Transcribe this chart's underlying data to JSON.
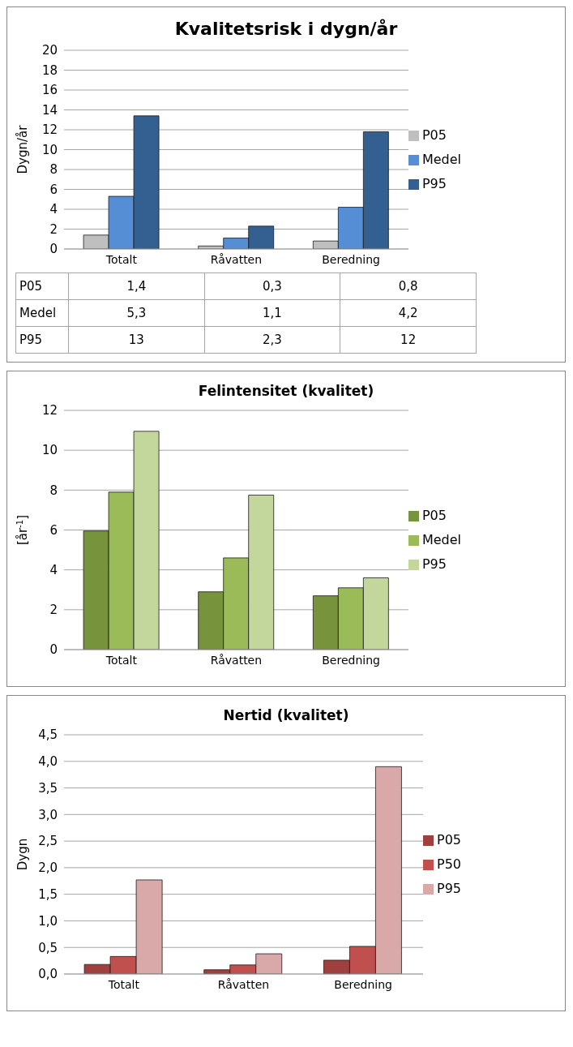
{
  "chart_data": [
    {
      "type": "bar",
      "title": "Kvalitetsrisk i dygn/år",
      "ylabel": "Dygn/år",
      "categories": [
        "Totalt",
        "Råvatten",
        "Beredning"
      ],
      "series": [
        {
          "name": "P05",
          "color": "#bfbfbf",
          "values": [
            1.4,
            0.3,
            0.8
          ],
          "value_labels": [
            "1,4",
            "0,3",
            "0,8"
          ]
        },
        {
          "name": "Medel",
          "color": "#558ed5",
          "values": [
            5.3,
            1.1,
            4.2
          ],
          "value_labels": [
            "5,3",
            "1,1",
            "4,2"
          ]
        },
        {
          "name": "P95",
          "color": "#335f91",
          "values": [
            13.4,
            2.3,
            11.8
          ],
          "value_labels": [
            "13",
            "2,3",
            "12"
          ]
        }
      ],
      "ylim": [
        0,
        20
      ],
      "yticks": [
        0,
        2,
        4,
        6,
        8,
        10,
        12,
        14,
        16,
        18,
        20
      ],
      "grid": "y",
      "legend": "right"
    },
    {
      "type": "bar",
      "title": "Felintensitet (kvalitet)",
      "ylabel": "[år$^{-1}$]",
      "categories": [
        "Totalt",
        "Råvatten",
        "Beredning"
      ],
      "series": [
        {
          "name": "P05",
          "color": "#77933c",
          "values": [
            5.95,
            2.9,
            2.7
          ]
        },
        {
          "name": "Medel",
          "color": "#9bbb59",
          "values": [
            7.9,
            4.6,
            3.1
          ]
        },
        {
          "name": "P95",
          "color": "#c3d69b",
          "values": [
            10.95,
            7.75,
            3.6
          ]
        }
      ],
      "ylim": [
        0,
        12
      ],
      "yticks": [
        0,
        2,
        4,
        6,
        8,
        10,
        12
      ],
      "grid": "y",
      "legend": "right"
    },
    {
      "type": "bar",
      "title": "Nertid (kvalitet)",
      "ylabel": "Dygn",
      "categories": [
        "Totalt",
        "Råvatten",
        "Beredning"
      ],
      "series": [
        {
          "name": "P05",
          "color": "#a0403e",
          "values": [
            0.18,
            0.08,
            0.26
          ]
        },
        {
          "name": "P50",
          "color": "#c0504d",
          "values": [
            0.33,
            0.17,
            0.52
          ]
        },
        {
          "name": "P95",
          "color": "#d9a9a9",
          "values": [
            1.77,
            0.38,
            3.9
          ]
        }
      ],
      "ylim": [
        0,
        4.5
      ],
      "yticks": [
        {
          "value": 0,
          "label": "0,0"
        },
        {
          "value": 0.5,
          "label": "0,5"
        },
        {
          "value": 1,
          "label": "1,0"
        },
        {
          "value": 1.5,
          "label": "1,5"
        },
        {
          "value": 2,
          "label": "2,0"
        },
        {
          "value": 2.5,
          "label": "2,5"
        },
        {
          "value": 3,
          "label": "3,0"
        },
        {
          "value": 3.5,
          "label": "3,5"
        },
        {
          "value": 4,
          "label": "4,0"
        },
        {
          "value": 4.5,
          "label": "4,5"
        }
      ],
      "grid": "y",
      "legend": "right"
    }
  ]
}
